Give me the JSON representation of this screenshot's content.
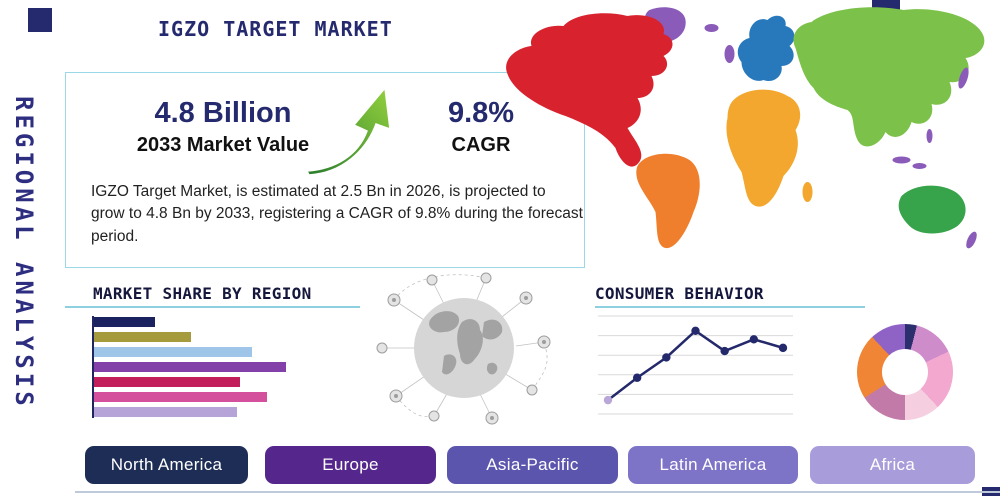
{
  "page": {
    "title": "IGZO TARGET MARKET",
    "vertical_label": "REGIONAL ANALYSIS"
  },
  "colors": {
    "navy": "#252a6e",
    "teal_line": "#8fd0e0",
    "arrow_green_dark": "#2a7d2e",
    "arrow_green_light": "#94d13d"
  },
  "stats": {
    "market_value": "4.8 Billion",
    "market_value_label": "2033 Market Value",
    "cagr_value": "9.8%",
    "cagr_label": "CAGR",
    "description": "IGZO Target Market, is estimated at 2.5 Bn in 2026, is projected to grow to 4.8 Bn by 2033, registering a CAGR of 9.8% during the forecast period."
  },
  "map": {
    "region_colors": {
      "north-america": "#d8232f",
      "greenland": "#8a5bb8",
      "south-america": "#f07f2d",
      "europe": "#2878bc",
      "africa": "#f3a72e",
      "asia": "#7cc24a",
      "australia": "#37a34a",
      "islands": "#8a5bb8"
    }
  },
  "region_buttons": [
    {
      "label": "North America",
      "color": "#1d2d55"
    },
    {
      "label": "Europe",
      "color": "#55268b"
    },
    {
      "label": "Asia-Pacific",
      "color": "#5c55ae"
    },
    {
      "label": "Latin America",
      "color": "#7d74c8"
    },
    {
      "label": "Africa",
      "color": "#a99cda"
    }
  ],
  "chart_data": [
    {
      "type": "bar",
      "title": "MARKET SHARE BY REGION",
      "orientation": "horizontal",
      "categories": [
        "",
        "",
        "",
        "",
        "",
        "",
        ""
      ],
      "values": [
        25,
        40,
        65,
        79,
        60,
        71,
        59
      ],
      "colors": [
        "#1b2260",
        "#a59b3c",
        "#9fc5e8",
        "#8340a8",
        "#c21e5c",
        "#d4509c",
        "#b6a3d8"
      ],
      "xlim": [
        0,
        100
      ],
      "xlabel": "",
      "ylabel": "",
      "grid": false
    },
    {
      "type": "line",
      "title": "CONSUMER BEHAVIOR",
      "x": [
        1,
        2,
        3,
        4,
        5,
        6,
        7
      ],
      "values": [
        1.3,
        3.4,
        5.3,
        7.8,
        5.9,
        7.0,
        6.2
      ],
      "ylim": [
        0,
        9
      ],
      "line_color": "#23296b",
      "first_marker_color": "#b9a7d9",
      "grid": true,
      "gridline_count": 6
    },
    {
      "type": "pie",
      "donut": true,
      "start_at_top": true,
      "slices": [
        {
          "color": "#2b2f6e",
          "value": 4
        },
        {
          "color": "#cf8ccb",
          "value": 14
        },
        {
          "color": "#f2a8cf",
          "value": 20
        },
        {
          "color": "#f5cfe0",
          "value": 12
        },
        {
          "color": "#c27ba8",
          "value": 16
        },
        {
          "color": "#ef8535",
          "value": 22
        },
        {
          "color": "#8f62c6",
          "value": 12
        }
      ]
    }
  ]
}
